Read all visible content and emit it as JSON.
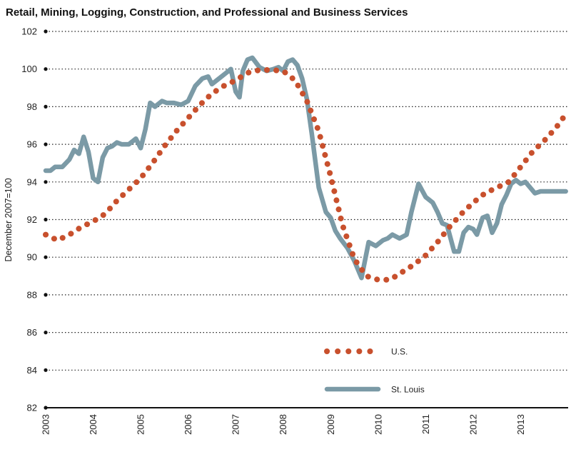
{
  "chart_data": {
    "type": "line",
    "title": "Retail, Mining, Logging, Construction, and Professional and Business Services",
    "xlabel": "",
    "ylabel": "December 2007=100",
    "ylim": [
      82,
      102
    ],
    "xlim": [
      2003,
      2014
    ],
    "yticks": [
      82,
      84,
      86,
      88,
      90,
      92,
      94,
      96,
      98,
      100,
      102
    ],
    "xticks": [
      2003,
      2004,
      2005,
      2006,
      2007,
      2008,
      2009,
      2010,
      2011,
      2012,
      2013
    ],
    "grid": "horizontal dotted",
    "legend_placement": "bottom-right",
    "series": [
      {
        "name": "U.S.",
        "color": "#c8502d",
        "style": "dotted",
        "x": [
          2003.0,
          2003.25,
          2003.5,
          2003.75,
          2004.0,
          2004.25,
          2004.5,
          2004.75,
          2005.0,
          2005.25,
          2005.5,
          2005.75,
          2006.0,
          2006.25,
          2006.5,
          2006.75,
          2007.0,
          2007.25,
          2007.5,
          2007.75,
          2008.0,
          2008.25,
          2008.5,
          2008.75,
          2009.0,
          2009.25,
          2009.5,
          2009.75,
          2010.0,
          2010.25,
          2010.5,
          2010.75,
          2011.0,
          2011.25,
          2011.5,
          2011.75,
          2012.0,
          2012.25,
          2012.5,
          2012.75,
          2013.0,
          2013.25,
          2013.5,
          2013.75,
          2013.95
        ],
        "values": [
          91.2,
          90.9,
          91.2,
          91.6,
          91.9,
          92.3,
          93.0,
          93.6,
          94.2,
          95.0,
          95.9,
          96.7,
          97.4,
          98.1,
          98.7,
          99.1,
          99.4,
          99.8,
          99.95,
          99.95,
          99.9,
          99.4,
          98.3,
          96.7,
          94.3,
          91.7,
          89.9,
          89.0,
          88.8,
          88.8,
          89.2,
          89.6,
          90.1,
          90.8,
          91.6,
          92.3,
          92.9,
          93.4,
          93.7,
          94.0,
          94.8,
          95.6,
          96.2,
          96.9,
          97.6
        ]
      },
      {
        "name": "St. Louis",
        "color": "#7b9aa6",
        "style": "solid",
        "x": [
          2003.0,
          2003.1,
          2003.2,
          2003.35,
          2003.5,
          2003.6,
          2003.7,
          2003.8,
          2003.9,
          2004.0,
          2004.1,
          2004.2,
          2004.3,
          2004.4,
          2004.5,
          2004.6,
          2004.75,
          2004.9,
          2005.0,
          2005.1,
          2005.2,
          2005.3,
          2005.45,
          2005.55,
          2005.7,
          2005.85,
          2006.0,
          2006.15,
          2006.3,
          2006.42,
          2006.5,
          2006.65,
          2006.8,
          2006.9,
          2007.0,
          2007.08,
          2007.15,
          2007.25,
          2007.35,
          2007.5,
          2007.65,
          2007.8,
          2007.9,
          2008.0,
          2008.1,
          2008.2,
          2008.3,
          2008.4,
          2008.5,
          2008.6,
          2008.75,
          2008.9,
          2009.0,
          2009.1,
          2009.2,
          2009.35,
          2009.5,
          2009.65,
          2009.8,
          2009.95,
          2010.1,
          2010.2,
          2010.3,
          2010.45,
          2010.6,
          2010.7,
          2010.85,
          2011.0,
          2011.15,
          2011.25,
          2011.35,
          2011.45,
          2011.6,
          2011.7,
          2011.8,
          2011.9,
          2012.0,
          2012.08,
          2012.2,
          2012.3,
          2012.4,
          2012.5,
          2012.6,
          2012.7,
          2012.8,
          2012.9,
          2013.0,
          2013.1,
          2013.2,
          2013.3,
          2013.42,
          2013.55,
          2013.65,
          2013.75,
          2013.85,
          2013.95
        ],
        "values": [
          94.6,
          94.6,
          94.8,
          94.8,
          95.2,
          95.7,
          95.5,
          96.4,
          95.6,
          94.2,
          94.0,
          95.3,
          95.8,
          95.9,
          96.1,
          96.0,
          96.0,
          96.3,
          95.8,
          96.8,
          98.2,
          98.0,
          98.3,
          98.2,
          98.2,
          98.1,
          98.3,
          99.1,
          99.5,
          99.6,
          99.2,
          99.5,
          99.8,
          100.0,
          98.8,
          98.5,
          99.9,
          100.5,
          100.6,
          100.1,
          99.9,
          100.0,
          100.1,
          99.9,
          100.4,
          100.5,
          100.2,
          99.5,
          98.4,
          96.6,
          93.7,
          92.4,
          92.1,
          91.4,
          91.0,
          90.5,
          89.8,
          88.9,
          90.8,
          90.6,
          90.9,
          91.0,
          91.2,
          91.0,
          91.2,
          92.4,
          93.9,
          93.2,
          92.9,
          92.4,
          91.8,
          91.7,
          90.3,
          90.3,
          91.3,
          91.6,
          91.5,
          91.2,
          92.1,
          92.2,
          91.3,
          91.8,
          92.8,
          93.3,
          93.9,
          94.1,
          93.9,
          94.0,
          93.7,
          93.4,
          93.5,
          93.5,
          93.5,
          93.5,
          93.5,
          93.5
        ]
      }
    ]
  }
}
